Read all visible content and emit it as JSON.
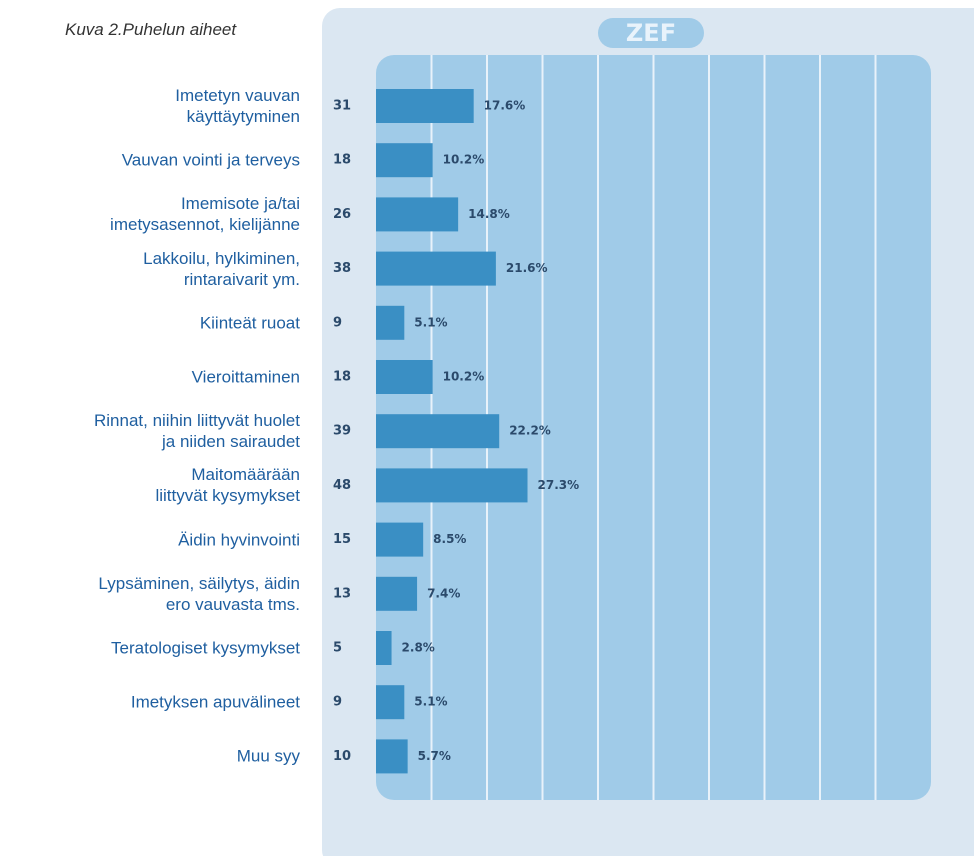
{
  "chart_data": {
    "type": "bar",
    "orientation": "horizontal",
    "title": "Kuva 2.Puhelun aiheet",
    "logo": "ZEF",
    "categories": [
      "Imetetyn vauvan\nkäyttäytyminen",
      "Vauvan vointi ja terveys",
      "Imemisote ja/tai\nimetysasennot, kielijänne",
      "Lakkoilu, hylkiminen,\nrintaraivarit ym.",
      "Kiinteät ruoat",
      "Vieroittaminen",
      "Rinnat, niihin liittyvät huolet\nja niiden sairaudet",
      "Maitomäärään\nliittyvät kysymykset",
      "Äidin hyvinvointi",
      "Lypsäminen, säilytys, äidin\nero vauvasta tms.",
      "Teratologiset kysymykset",
      "Imetyksen apuvälineet",
      "Muu syy"
    ],
    "counts": [
      31,
      18,
      26,
      38,
      9,
      18,
      39,
      48,
      15,
      13,
      5,
      9,
      10
    ],
    "values": [
      17.6,
      10.2,
      14.8,
      21.6,
      5.1,
      10.2,
      22.2,
      27.3,
      8.5,
      7.4,
      2.8,
      5.1,
      5.7
    ],
    "value_labels": [
      "17.6%",
      "10.2%",
      "14.8%",
      "21.6%",
      "5.1%",
      "10.2%",
      "22.2%",
      "27.3%",
      "8.5%",
      "7.4%",
      "2.8%",
      "5.1%",
      "5.7%"
    ],
    "color": "#3a8fc4",
    "xlim": [
      0,
      100
    ],
    "xticks": [
      0,
      10,
      20,
      30,
      40,
      50,
      60,
      70,
      80,
      90,
      100
    ],
    "grid": true
  }
}
